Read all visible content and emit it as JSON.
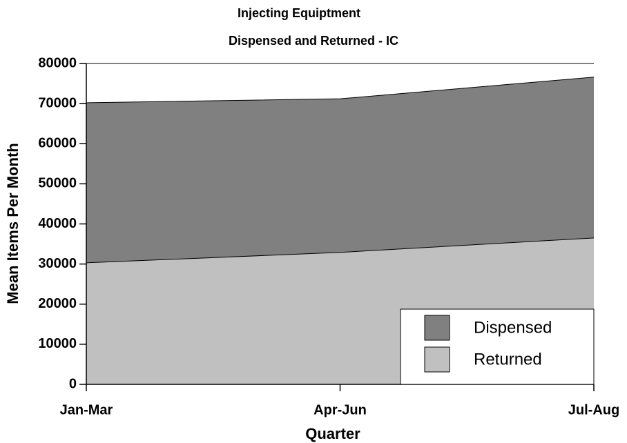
{
  "chart_data": {
    "type": "area",
    "title": "Injecting Equiptment",
    "subtitle": "Dispensed and Returned - IC",
    "x_label": "Quarter",
    "y_label": "Mean Items Per Month",
    "categories": [
      "Jan-Mar",
      "Apr-Jun",
      "Jul-Aug"
    ],
    "series": [
      {
        "name": "Dispensed",
        "color": "#808080",
        "values": [
          70200,
          71200,
          76600
        ]
      },
      {
        "name": "Returned",
        "color": "#c0c0c0",
        "values": [
          30300,
          32900,
          36500
        ]
      }
    ],
    "ylim": [
      0,
      80000
    ],
    "yticks": [
      0,
      10000,
      20000,
      30000,
      40000,
      50000,
      60000,
      70000,
      80000
    ],
    "legend": "lower right"
  }
}
